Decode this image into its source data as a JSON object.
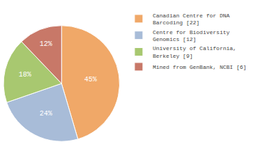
{
  "chart_data": {
    "type": "pie",
    "categories": [
      "Canadian Centre for DNA\nBarcoding [22]",
      "Centre for Biodiversity\nGenomics [12]",
      "University of California,\nBerkeley [9]",
      "Mined from GenBank, NCBI [6]"
    ],
    "values": [
      45,
      24,
      18,
      12
    ],
    "value_labels": [
      "45%",
      "24%",
      "18%",
      "12%"
    ],
    "colors": [
      "#f0a868",
      "#a8bcd8",
      "#a8c870",
      "#c87868"
    ],
    "data_labels": true,
    "legend": "right"
  }
}
